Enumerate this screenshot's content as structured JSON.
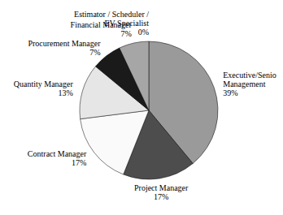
{
  "chart_data": {
    "type": "pie",
    "categories": [
      "Executive/Senior Management",
      "Project Manager",
      "Contract Manager",
      "Quantity Manager",
      "Procurement Manager",
      "Financial Manager",
      "Estimator / Scheduler / EV Specialist"
    ],
    "values": [
      39,
      17,
      17,
      13,
      7,
      7,
      0
    ],
    "value_labels": [
      "39%",
      "17%",
      "17%",
      "13%",
      "7%",
      "7%",
      "0%"
    ],
    "colors": [
      "#9a9a9a",
      "#4d4d4d",
      "#fafafa",
      "#e6e6e6",
      "#1a1a1a",
      "#a6a6a6",
      "#c0c0c0"
    ]
  }
}
